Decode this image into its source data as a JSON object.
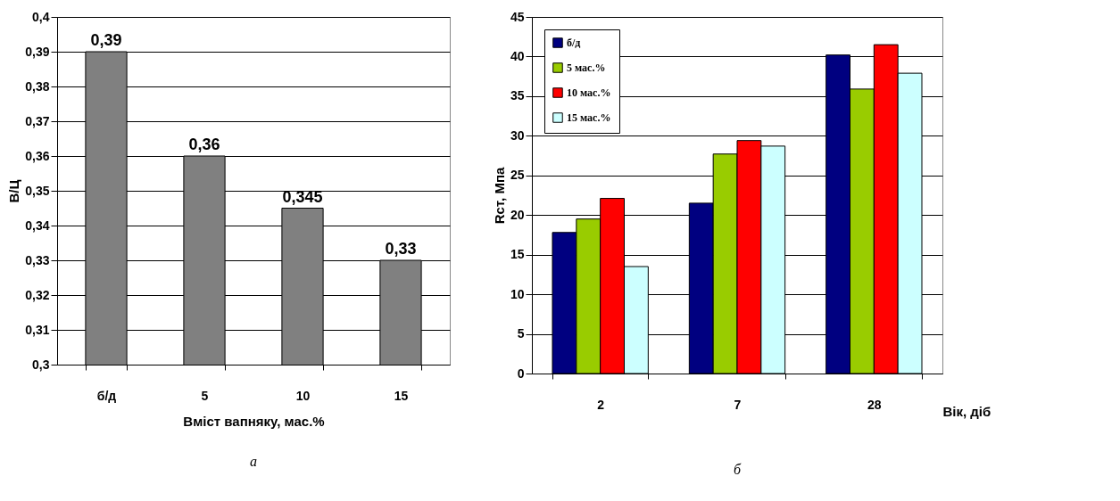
{
  "chart_data": [
    {
      "type": "bar",
      "categories": [
        "б/д",
        "5",
        "10",
        "15"
      ],
      "values": [
        0.39,
        0.36,
        0.345,
        0.33
      ],
      "color": "#808080",
      "xlabel": "Вміст вапняку, мас.%",
      "ylabel": "В/Ц",
      "value_labels": [
        "0,39",
        "0,36",
        "0,345",
        "0,33"
      ],
      "ylim": [
        0.3,
        0.4
      ],
      "yticks": [
        {
          "value": 0.3,
          "label": "0,3"
        },
        {
          "value": 0.31,
          "label": "0,31"
        },
        {
          "value": 0.32,
          "label": "0,32"
        },
        {
          "value": 0.33,
          "label": "0,33"
        },
        {
          "value": 0.34,
          "label": "0,34"
        },
        {
          "value": 0.35,
          "label": "0,35"
        },
        {
          "value": 0.36,
          "label": "0,36"
        },
        {
          "value": 0.37,
          "label": "0,37"
        },
        {
          "value": 0.38,
          "label": "0,38"
        },
        {
          "value": 0.39,
          "label": "0,39"
        },
        {
          "value": 0.4,
          "label": "0,4"
        }
      ],
      "grid": "y",
      "annotations": [
        "а"
      ]
    },
    {
      "type": "bar",
      "categories": [
        "2",
        "7",
        "28"
      ],
      "series": [
        {
          "name": "б/д",
          "color": "#000080",
          "values": [
            17.8,
            21.5,
            40.2
          ]
        },
        {
          "name": "5 мас.%",
          "color": "#99cc00",
          "values": [
            19.5,
            27.7,
            35.9
          ]
        },
        {
          "name": "10 мас.%",
          "color": "#ff0000",
          "values": [
            22.1,
            29.4,
            41.5
          ]
        },
        {
          "name": "15 мас.%",
          "color": "#ccffff",
          "values": [
            13.5,
            28.7,
            37.9
          ]
        }
      ],
      "xlabel": "Вік, діб",
      "ylabel": "Rст, Мпа",
      "ylim": [
        0,
        45
      ],
      "yticks": [
        0,
        5,
        10,
        15,
        20,
        25,
        30,
        35,
        40,
        45
      ],
      "grid": "y",
      "legend": "top left",
      "annotations": [
        "б"
      ]
    }
  ]
}
